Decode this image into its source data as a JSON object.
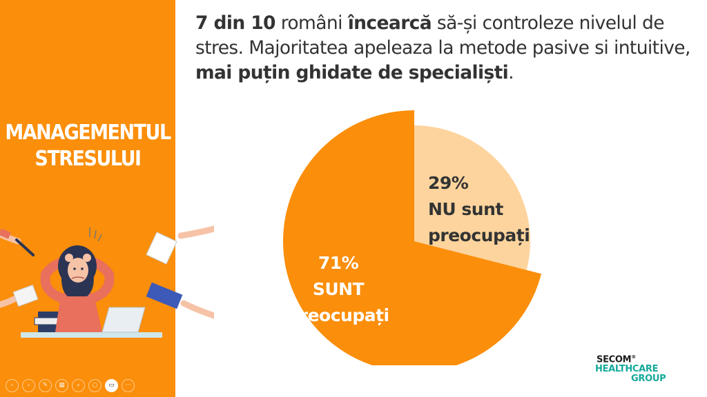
{
  "sidebar": {
    "title_line1": "MANAGEMENTUL",
    "title_line2": "STRESULUI"
  },
  "headline": {
    "part1_bold": "7 din 10",
    "part2": " români ",
    "part3_bold": "încearcă",
    "part4": " să-și controleze nivelul de stres. Majoritatea apeleaza la metode pasive si intuitive, ",
    "part5_bold": "mai puțin ghidate de specialiști",
    "part6": "."
  },
  "chart_data": {
    "type": "pie",
    "title": "",
    "slices": [
      {
        "label_pct": "29%",
        "label_line1": "NU sunt",
        "label_line2": "preocupați",
        "value": 29,
        "color": "#fdd49d"
      },
      {
        "label_pct": "71%",
        "label_line1": "SUNT",
        "label_line2": "preocupați",
        "value": 71,
        "color": "#fb8e0a"
      }
    ],
    "start_angle_deg": 0,
    "highlighted_slice": "29%",
    "label_color_small": "#333333",
    "label_color_large": "#ffffff"
  },
  "logo": {
    "line1": "SECOM",
    "registered": "®",
    "line2": "HEALTHCARE",
    "line3": "GROUP"
  },
  "controls": {
    "icons": [
      "previous-icon",
      "next-icon",
      "pen-icon",
      "slides-icon",
      "zoom-icon",
      "more-options-icon",
      "camera-icon",
      "ellipsis-icon"
    ],
    "prev": "‹",
    "next": "›",
    "pen": "✎",
    "slides": "▦",
    "zoom": "⌕",
    "circle": "○",
    "camera": "▭",
    "more": "···"
  },
  "colors": {
    "accent": "#fb8e0a",
    "light_accent": "#fdd49d",
    "logo_teal": "#14a99b"
  }
}
